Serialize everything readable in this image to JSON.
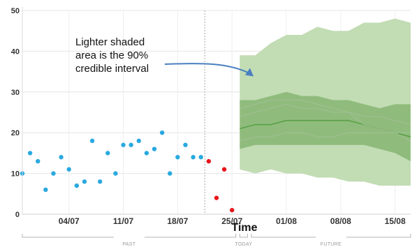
{
  "chart_data": {
    "type": "scatter",
    "xlabel": "Time",
    "ylim": [
      0,
      50
    ],
    "yticks": [
      0,
      10,
      20,
      30,
      40,
      50
    ],
    "grid": true,
    "x_tick_labels": [
      "04/07",
      "11/07",
      "18/07",
      "25/07",
      "01/08",
      "08/08",
      "15/08"
    ],
    "x_tick_days": [
      6,
      13,
      20,
      27,
      34,
      41,
      48
    ],
    "today_marker_day": 23.5,
    "segments": [
      {
        "label": "PAST",
        "start_day": 0,
        "end_day": 27.5
      },
      {
        "label": "TODAY",
        "start_day": 28,
        "end_day": 29
      },
      {
        "label": "FUTURE",
        "start_day": 29.5,
        "end_day": 50
      }
    ],
    "series": [
      {
        "kind": "points",
        "color": "#29a9e0",
        "x": [
          0,
          1,
          2,
          3,
          4,
          5,
          6,
          7,
          8,
          9,
          10,
          11,
          12,
          13,
          14,
          15,
          16,
          17,
          18,
          19,
          20,
          21,
          22,
          23
        ],
        "y": [
          10,
          15,
          13,
          6,
          10,
          14,
          11,
          7,
          8,
          18,
          8,
          15,
          10,
          17,
          17,
          18,
          15,
          16,
          20,
          10,
          14,
          17,
          14,
          14
        ]
      },
      {
        "kind": "points",
        "color": "#e8141b",
        "x": [
          24,
          25,
          26,
          27
        ],
        "y": [
          13,
          4,
          11,
          1
        ]
      },
      {
        "kind": "band",
        "color": "#c2dcb4",
        "x": [
          28,
          30,
          32,
          34,
          36,
          38,
          40,
          42,
          44,
          46,
          48,
          50
        ],
        "lower": [
          11,
          10,
          11,
          10,
          10,
          9,
          9,
          8,
          8,
          7,
          7,
          7
        ],
        "upper": [
          39,
          39,
          42,
          44,
          44,
          46,
          45,
          45,
          47,
          47,
          48,
          47
        ]
      },
      {
        "kind": "band",
        "color": "#8fbc7c",
        "x": [
          28,
          30,
          32,
          34,
          36,
          38,
          40,
          42,
          44,
          46,
          48,
          50
        ],
        "lower": [
          16,
          17,
          17,
          17,
          17,
          17,
          17,
          17,
          17,
          16,
          15,
          13
        ],
        "upper": [
          28,
          28,
          29,
          30,
          29,
          29,
          28,
          28,
          27,
          26,
          27,
          27
        ]
      },
      {
        "kind": "line",
        "color": "#5aa046",
        "x": [
          28,
          30,
          32,
          34,
          36,
          38,
          40,
          42,
          44,
          46,
          48,
          50
        ],
        "y": [
          21,
          22,
          22,
          23,
          23,
          23,
          23,
          23,
          22,
          21,
          20,
          19
        ]
      },
      {
        "kind": "line",
        "color": "#9fbf94",
        "x": [
          28,
          30,
          32,
          34,
          36,
          38,
          40,
          42,
          44,
          46,
          48,
          50
        ],
        "y": [
          26,
          27,
          28,
          28,
          28,
          27,
          26,
          25,
          24,
          24,
          23,
          22
        ]
      },
      {
        "kind": "line",
        "color": "#9fbf94",
        "x": [
          28,
          30,
          32,
          34,
          36,
          38,
          40,
          42,
          44,
          46,
          48,
          50
        ],
        "y": [
          18,
          19,
          19,
          20,
          20,
          19,
          19,
          20,
          20,
          20,
          20,
          20
        ]
      },
      {
        "kind": "line",
        "color": "#9fbf94",
        "x": [
          28,
          30,
          32,
          34,
          36,
          38,
          40,
          42,
          44,
          46,
          48,
          50
        ],
        "y": [
          24,
          25,
          26,
          27,
          26,
          26,
          25,
          25,
          22,
          21,
          20,
          18
        ]
      }
    ],
    "annotation": {
      "lines": [
        "Lighter shaded",
        "area is the 90%",
        "credible interval"
      ],
      "arrow_to_day": 29.5,
      "arrow_to_value": 34,
      "arrow_color": "#4a7fc0"
    }
  }
}
